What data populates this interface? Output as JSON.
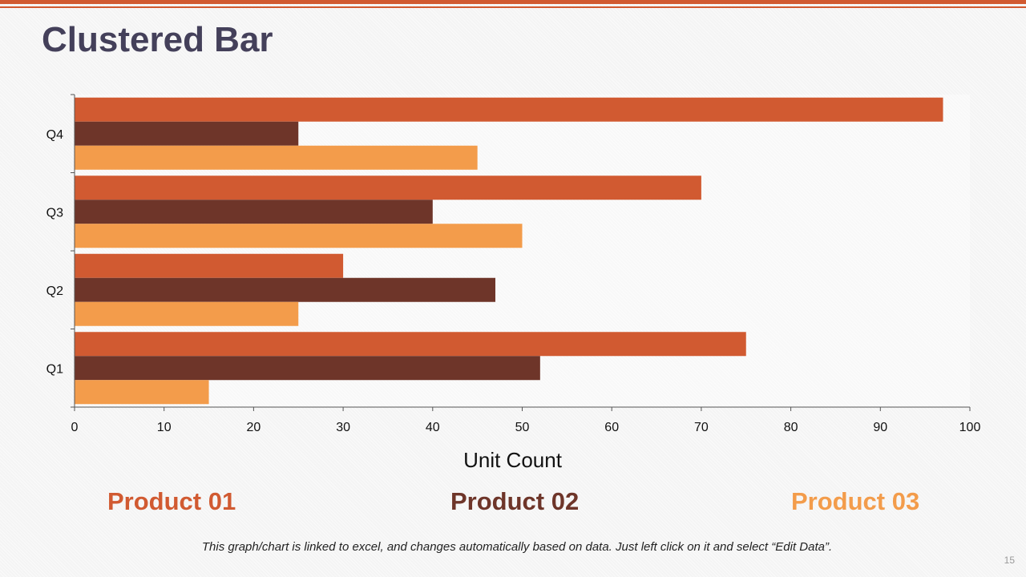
{
  "slide": {
    "title": "Clustered Bar",
    "footnote": "This graph/chart is linked to excel, and changes automatically based on data. Just left click on it and select “Edit Data”.",
    "page_number": "15",
    "accent_color": "#d15a31"
  },
  "chart_data": {
    "type": "bar",
    "orientation": "horizontal",
    "title": "",
    "categories": [
      "Q1",
      "Q2",
      "Q3",
      "Q4"
    ],
    "series": [
      {
        "name": "Product 01",
        "color": "#d15a31",
        "values": [
          75,
          30,
          70,
          97
        ]
      },
      {
        "name": "Product 02",
        "color": "#6e3529",
        "values": [
          52,
          47,
          40,
          25
        ]
      },
      {
        "name": "Product 03",
        "color": "#f39c4b",
        "values": [
          15,
          25,
          50,
          45
        ]
      }
    ],
    "xlabel": "Unit Count",
    "ylabel": "",
    "xlim": [
      0,
      100
    ],
    "xticks": [
      "0",
      "10",
      "20",
      "30",
      "40",
      "50",
      "60",
      "70",
      "80",
      "90",
      "100"
    ],
    "grid": false,
    "legend_position": "bottom"
  }
}
